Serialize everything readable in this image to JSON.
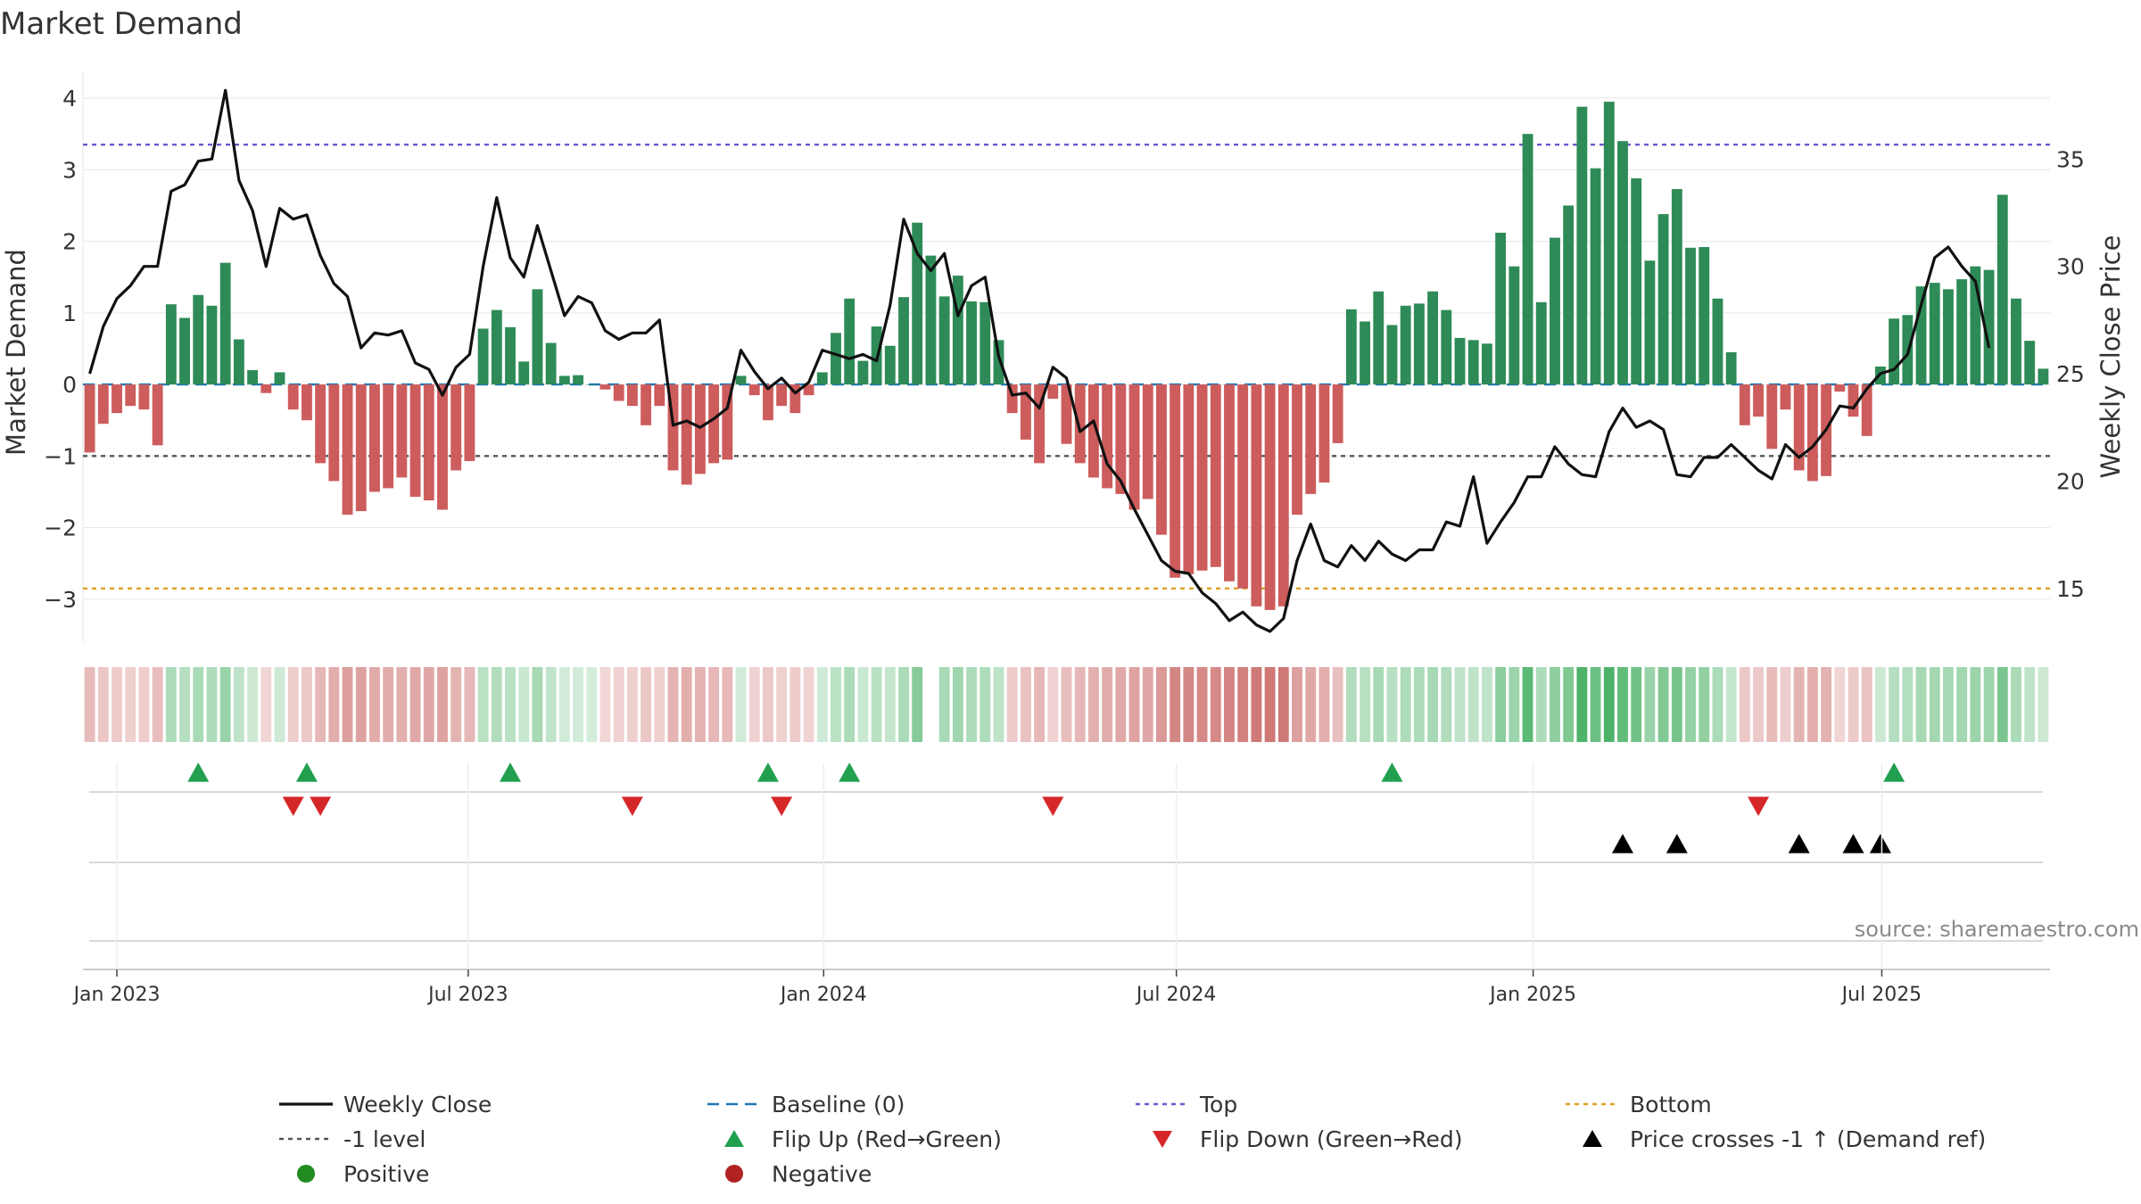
{
  "chart_data": {
    "type": "bar",
    "title": "Market Demand",
    "ylabel": "Market Demand",
    "ylabel_right": "Weekly Close Price",
    "ylim": [
      -3.6,
      4.2
    ],
    "ylim_right": [
      12.5,
      38.5
    ],
    "yticks": [
      "4",
      "3",
      "2",
      "1",
      "0",
      "−1",
      "−2",
      "−3"
    ],
    "yticks_right": [
      "35",
      "30",
      "25",
      "20",
      "15"
    ],
    "x_start_week_offset": -2,
    "xticks": [
      {
        "label": "Jan 2023",
        "week": 0
      },
      {
        "label": "Jul 2023",
        "week": 25.9
      },
      {
        "label": "Jan 2024",
        "week": 52.1
      },
      {
        "label": "Jul 2024",
        "week": 78.1
      },
      {
        "label": "Jan 2025",
        "week": 104.4
      },
      {
        "label": "Jul 2025",
        "week": 130.1
      }
    ],
    "top_level": 3.35,
    "bottom_level": -2.85,
    "minus_one_level": -1.0,
    "baseline": 0,
    "demand": [
      -0.95,
      -0.55,
      -0.4,
      -0.3,
      -0.35,
      -0.85,
      1.12,
      0.93,
      1.25,
      1.1,
      1.7,
      0.63,
      0.2,
      -0.12,
      0.17,
      -0.35,
      -0.5,
      -1.1,
      -1.35,
      -1.82,
      -1.77,
      -1.5,
      -1.45,
      -1.3,
      -1.57,
      -1.62,
      -1.75,
      -1.2,
      -1.07,
      0.78,
      1.04,
      0.8,
      0.32,
      1.33,
      0.58,
      0.12,
      0.13,
      0,
      -0.07,
      -0.23,
      -0.3,
      -0.57,
      -0.3,
      -1.2,
      -1.4,
      -1.25,
      -1.1,
      -1.05,
      0.12,
      -0.15,
      -0.5,
      -0.3,
      -0.4,
      -0.15,
      0.17,
      0.72,
      1.2,
      0.33,
      0.81,
      0.54,
      1.22,
      2.26,
      1.8,
      1.23,
      1.52,
      1.16,
      1.15,
      0.62,
      -0.4,
      -0.77,
      -1.1,
      -0.2,
      -0.83,
      -1.1,
      -1.3,
      -1.45,
      -1.53,
      -1.75,
      -1.6,
      -2.1,
      -2.7,
      -2.65,
      -2.6,
      -2.55,
      -2.75,
      -2.85,
      -3.1,
      -3.15,
      -3.1,
      -1.82,
      -1.53,
      -1.37,
      -0.82,
      1.05,
      0.88,
      1.3,
      0.83,
      1.1,
      1.13,
      1.3,
      1.04,
      0.65,
      0.62,
      0.57,
      2.12,
      1.65,
      3.5,
      1.15,
      2.05,
      2.5,
      3.88,
      3.02,
      3.95,
      3.4,
      2.88,
      1.73,
      2.38,
      2.73,
      1.91,
      1.92,
      1.2,
      0.45,
      -0.57,
      -0.45,
      -0.9,
      -0.35,
      -1.2,
      -1.35,
      -1.28,
      -0.1,
      -0.45,
      -0.72,
      0.25,
      0.92,
      0.97,
      1.37,
      1.42,
      1.33,
      1.47,
      1.65,
      1.6,
      2.65,
      1.2,
      0.61,
      0.22
    ],
    "close": [
      25,
      27.2,
      28.5,
      29.1,
      30,
      30,
      33.5,
      33.8,
      34.9,
      35,
      38.2,
      34,
      32.6,
      30,
      32.7,
      32.2,
      32.4,
      30.5,
      29.2,
      28.6,
      26.2,
      26.9,
      26.8,
      27,
      25.5,
      25.2,
      24,
      25.3,
      25.9,
      30,
      33.2,
      30.4,
      29.5,
      31.9,
      29.8,
      27.7,
      28.6,
      28.3,
      27,
      26.6,
      26.9,
      26.9,
      27.5,
      22.6,
      22.8,
      22.5,
      22.9,
      23.4,
      26.1,
      25.1,
      24.3,
      24.8,
      24.1,
      24.6,
      26.1,
      25.9,
      25.7,
      25.9,
      25.6,
      28.2,
      32.2,
      30.6,
      29.8,
      30.6,
      27.7,
      29.1,
      29.5,
      25.8,
      24,
      24.1,
      23.4,
      25.3,
      24.8,
      22.3,
      22.8,
      20.8,
      20,
      18.7,
      17.5,
      16.3,
      15.8,
      15.7,
      14.8,
      14.3,
      13.5,
      13.9,
      13.3,
      13,
      13.6,
      16.3,
      18,
      16.3,
      16,
      17,
      16.3,
      17.2,
      16.6,
      16.3,
      16.8,
      16.8,
      18.1,
      17.9,
      20.2,
      17.1,
      18.1,
      19,
      20.2,
      20.2,
      21.6,
      20.8,
      20.3,
      20.2,
      22.3,
      23.4,
      22.5,
      22.8,
      22.4,
      20.3,
      20.2,
      21.1,
      21.1,
      21.7,
      21.1,
      20.5,
      20.1,
      21.7,
      21.1,
      21.6,
      22.4,
      23.5,
      23.4,
      24.3,
      25,
      25.2,
      25.9,
      28.2,
      30.4,
      30.9,
      30,
      29.3,
      26.2
    ],
    "flip_up_weeks": [
      6,
      14,
      29,
      48,
      54,
      94,
      131
    ],
    "flip_down_weeks": [
      13,
      15,
      38,
      49,
      69,
      121
    ],
    "price_cross_weeks": [
      111,
      115,
      124,
      128,
      130
    ],
    "strip_missing_weeks": [
      60
    ],
    "annotation": "source: sharemaestro.com",
    "legend": [
      {
        "label": "Weekly Close",
        "marker": "solid-line",
        "color": "#111111"
      },
      {
        "label": "Baseline (0)",
        "marker": "dashed-line",
        "color": "#1f77b4"
      },
      {
        "label": "Top",
        "marker": "dotted-line",
        "color": "#6a5acd"
      },
      {
        "label": "Bottom",
        "marker": "dotted-line",
        "color": "#e0a020"
      },
      {
        "label": "-1 level",
        "marker": "dotted-line",
        "color": "#555555"
      },
      {
        "label": "Flip Up (Red→Green)",
        "marker": "triangle-up",
        "color": "#22a050"
      },
      {
        "label": "Flip Down (Green→Red)",
        "marker": "triangle-down",
        "color": "#d62728"
      },
      {
        "label": "Price crosses -1 ↑ (Demand ref)",
        "marker": "triangle-up",
        "color": "#000000"
      },
      {
        "label": "Positive",
        "marker": "circle",
        "color": "#228b22"
      },
      {
        "label": "Negative",
        "marker": "circle",
        "color": "#b22222"
      }
    ],
    "colors": {
      "positive_bar": "#2e8b57",
      "negative_bar": "#cd5c5c",
      "close_line": "#111111",
      "baseline": "#1f77b4",
      "top": "#6a5acd",
      "bottom": "#e0a020",
      "minus_one": "#555555",
      "flip_up": "#22a050",
      "flip_down": "#d62728",
      "price_cross": "#000000",
      "grid": "#e6e6e6",
      "strip_positive": "#3cab5a",
      "strip_negative": "#c0504d"
    }
  }
}
